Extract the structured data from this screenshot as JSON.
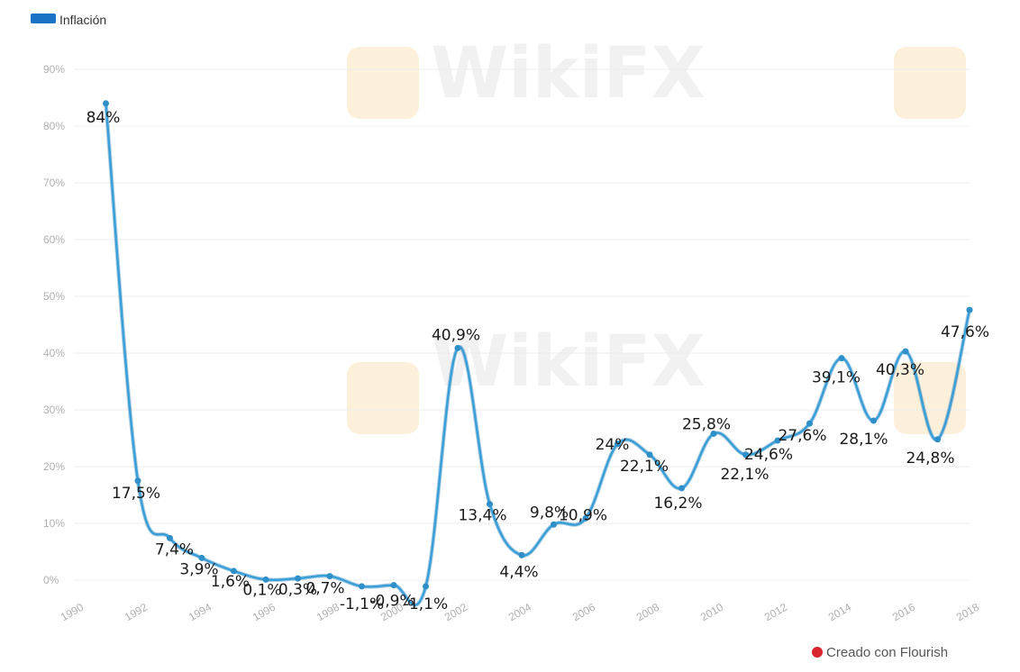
{
  "chart_data": {
    "type": "line",
    "legend": {
      "label": "Inflación",
      "placement": "top-left"
    },
    "series": [
      {
        "name": "Inflación",
        "color": "#3a9fd6",
        "x": [
          1991,
          1992,
          1993,
          1994,
          1995,
          1996,
          1997,
          1998,
          1999,
          2000,
          2001,
          2002,
          2003,
          2004,
          2005,
          2006,
          2007,
          2008,
          2009,
          2010,
          2011,
          2012,
          2013,
          2014,
          2015,
          2016,
          2017,
          2018
        ],
        "y": [
          84,
          17.5,
          7.4,
          3.9,
          1.6,
          0.1,
          0.3,
          0.7,
          -1.1,
          -0.9,
          -1.1,
          40.9,
          13.4,
          4.4,
          9.8,
          10.9,
          24,
          22.1,
          16.2,
          25.8,
          22.1,
          24.6,
          27.6,
          39.1,
          28.1,
          40.3,
          24.8,
          47.6
        ],
        "labels": [
          "84%",
          "17,5%",
          "7,4%",
          "3,9%",
          "1,6%",
          "0,1%",
          "0,3%",
          "0,7%",
          "-1,1%",
          "-0,9%",
          "-1,1%",
          "40,9%",
          "13,4%",
          "4,4%",
          "9,8%",
          "10,9%",
          "24%",
          "22,1%",
          "16,2%",
          "25,8%",
          "22,1%",
          "24,6%",
          "27,6%",
          "39,1%",
          "28,1%",
          "40,3%",
          "24,8%",
          "47,6%"
        ]
      }
    ],
    "yaxis": {
      "range": [
        0,
        90
      ],
      "ticks": [
        "0%",
        "10%",
        "20%",
        "30%",
        "40%",
        "50%",
        "60%",
        "70%",
        "80%",
        "90%"
      ],
      "tick_values": [
        0,
        10,
        20,
        30,
        40,
        50,
        60,
        70,
        80,
        90
      ],
      "grid": true
    },
    "xaxis": {
      "range": [
        1990,
        2018
      ],
      "ticks": [
        "1990",
        "1992",
        "1994",
        "1996",
        "1998",
        "2000",
        "2002",
        "2004",
        "2006",
        "2008",
        "2010",
        "2012",
        "2014",
        "2016",
        "2018"
      ],
      "tick_values": [
        1990,
        1992,
        1994,
        1996,
        1998,
        2000,
        2002,
        2004,
        2006,
        2008,
        2010,
        2012,
        2014,
        2016,
        2018
      ]
    },
    "title": "",
    "xlabel": "",
    "ylabel": ""
  },
  "credit": {
    "text": "Creado con Flourish",
    "dot_color": "#d7262e"
  },
  "watermark": {
    "text": "WikiFX",
    "logo_color": "#f6c56d"
  }
}
